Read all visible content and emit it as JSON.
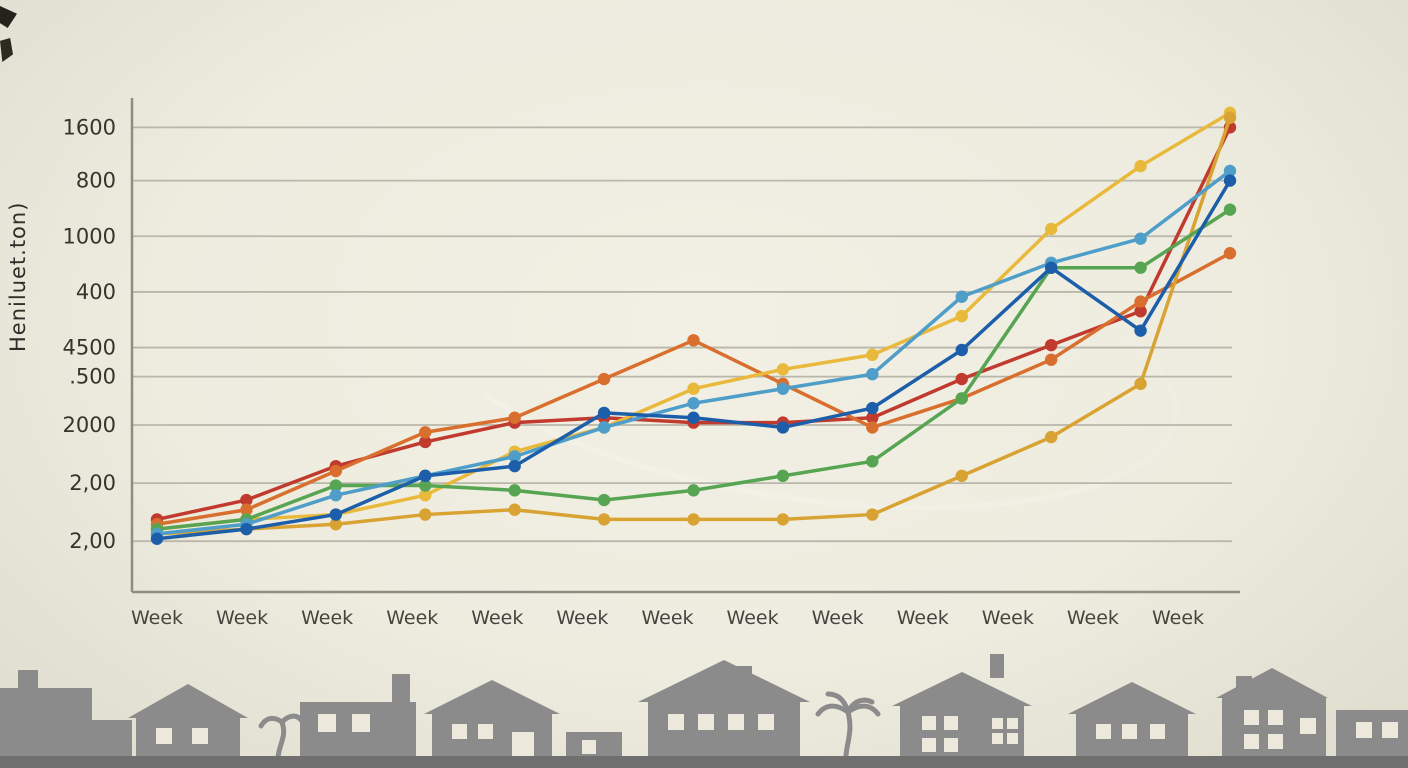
{
  "page": {
    "background": "#f0eee2",
    "axis_color": "#8f8d80",
    "grid_color": "#b9b7aa",
    "tick_text_color": "#35352f",
    "x_label_color": "#45453f"
  },
  "y_axis": {
    "title": "Heniluet.ton)"
  },
  "chart_data": {
    "type": "line",
    "title": "",
    "xlabel": "",
    "ylabel": "Heniluet.ton)",
    "grid": true,
    "legend": false,
    "ylim": [
      0,
      100
    ],
    "x": [
      "Week",
      "Week",
      "Week",
      "Week",
      "Week",
      "Week",
      "Week",
      "Week",
      "Week",
      "Week",
      "Week",
      "Week",
      "Week"
    ],
    "y_ticks": [
      {
        "label": "1600",
        "v": 96
      },
      {
        "label": "800",
        "v": 85
      },
      {
        "label": "1000",
        "v": 73.5
      },
      {
        "label": "400",
        "v": 62
      },
      {
        "label": "4500",
        "v": 50.5
      },
      {
        "label": ".500",
        "v": 44.5
      },
      {
        "label": "2000",
        "v": 34.5
      },
      {
        "label": "2,00",
        "v": 22.5
      },
      {
        "label": "2,00",
        "v": 10.5
      }
    ],
    "series": [
      {
        "name": "red",
        "color": "#c13a2e",
        "values": [
          15,
          19,
          26,
          31,
          35,
          36,
          35,
          35,
          36,
          44,
          51,
          58,
          96
        ]
      },
      {
        "name": "orange",
        "color": "#d96f2e",
        "values": [
          14,
          17,
          25,
          33,
          36,
          44,
          52,
          43,
          34,
          40,
          48,
          60,
          70
        ]
      },
      {
        "name": "yellow",
        "color": "#e9b93c",
        "values": [
          13,
          15,
          16,
          20,
          29,
          34,
          42,
          46,
          49,
          57,
          75,
          88,
          99
        ]
      },
      {
        "name": "gold",
        "color": "#d9a334",
        "values": [
          12,
          13,
          14,
          16,
          17,
          15,
          15,
          15,
          16,
          24,
          32,
          43,
          98
        ]
      },
      {
        "name": "green",
        "color": "#57a552",
        "values": [
          13,
          15,
          22,
          22,
          21,
          19,
          21,
          24,
          27,
          40,
          67,
          67,
          79
        ]
      },
      {
        "name": "light-blue",
        "color": "#4e9ec9",
        "values": [
          12,
          14,
          20,
          24,
          28,
          34,
          39,
          42,
          45,
          61,
          68,
          73,
          87
        ]
      },
      {
        "name": "dark-blue",
        "color": "#1c5ea9",
        "values": [
          11,
          13,
          16,
          24,
          26,
          37,
          36,
          34,
          38,
          50,
          67,
          54,
          85
        ]
      }
    ]
  }
}
